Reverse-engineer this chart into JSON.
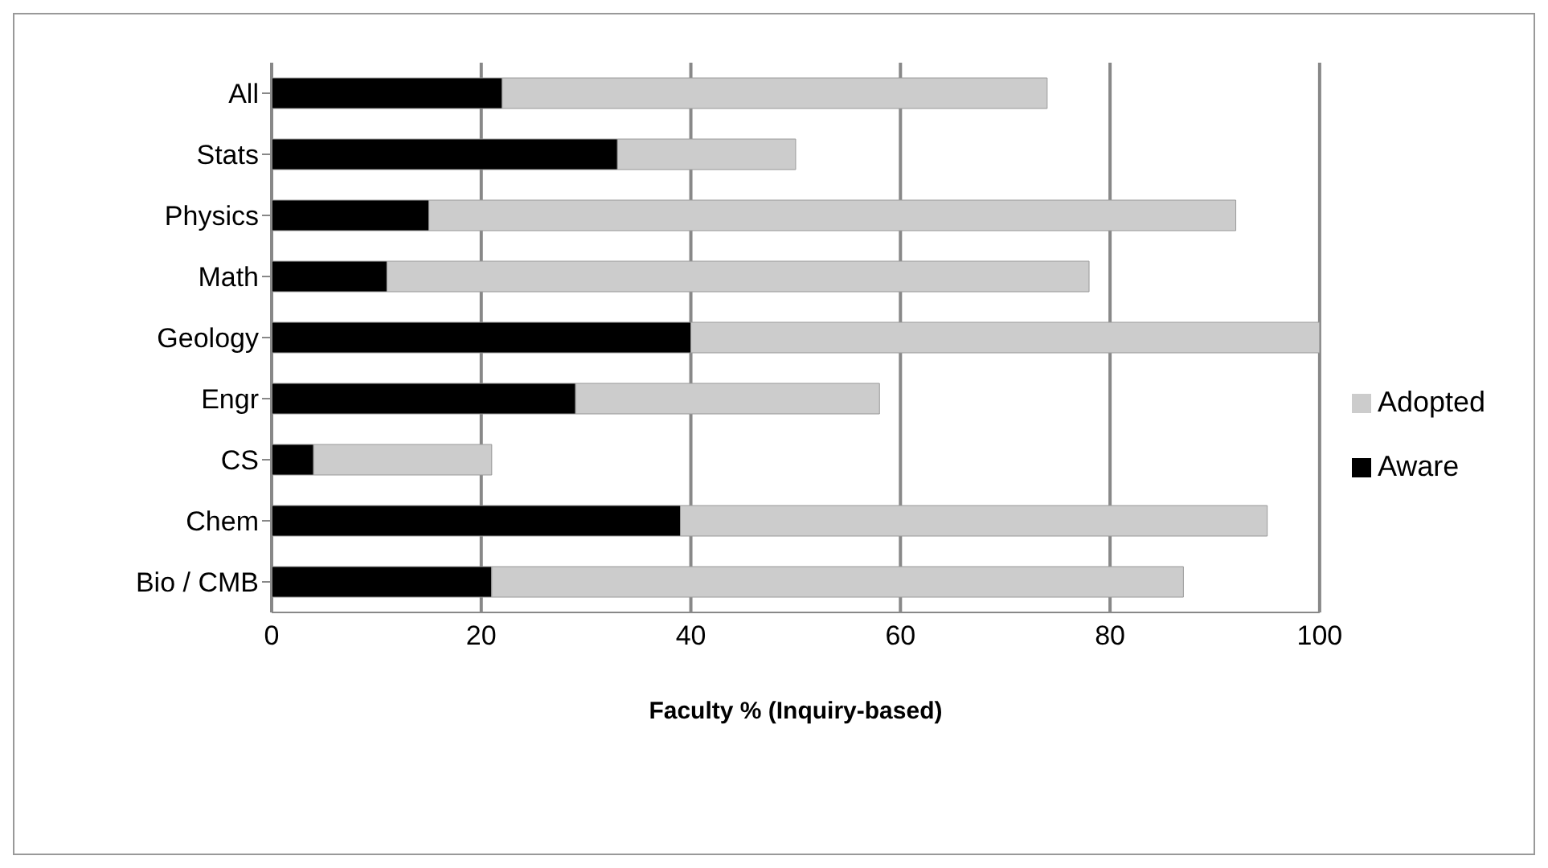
{
  "chart_data": {
    "type": "bar",
    "orientation": "horizontal",
    "stacked": true,
    "xlabel": "Faculty % (Inquiry-based)",
    "categories": [
      "All",
      "Stats",
      "Physics",
      "Math",
      "Geology",
      "Engr",
      "CS",
      "Chem",
      "Bio / CMB"
    ],
    "series": [
      {
        "name": "Aware",
        "color": "#000000",
        "values": [
          22,
          33,
          15,
          11,
          40,
          29,
          4,
          39,
          21
        ]
      },
      {
        "name": "Adopted",
        "color": "#cccccc",
        "values": [
          52,
          17,
          77,
          67,
          60,
          29,
          17,
          56,
          66
        ]
      }
    ],
    "xlim": [
      0,
      100
    ],
    "xticks": [
      0,
      20,
      40,
      60,
      80,
      100
    ],
    "grid": "x",
    "legend": "right"
  }
}
